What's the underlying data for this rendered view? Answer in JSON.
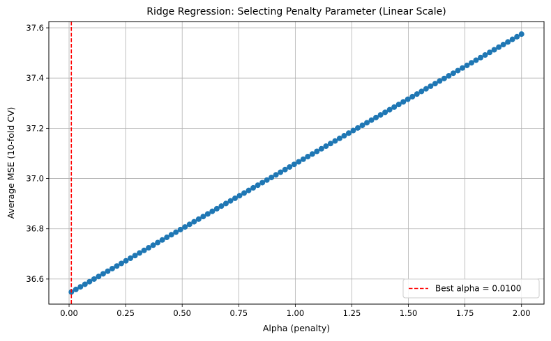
{
  "chart_data": {
    "type": "line",
    "title": "Ridge Regression: Selecting Penalty Parameter (Linear Scale)",
    "xlabel": "Alpha (penalty)",
    "ylabel": "Average MSE (10-fold CV)",
    "xlim": [
      -0.0895,
      2.0995
    ],
    "ylim": [
      36.5,
      37.625
    ],
    "xticks": [
      0.0,
      0.25,
      0.5,
      0.75,
      1.0,
      1.25,
      1.5,
      1.75,
      2.0
    ],
    "xtick_labels": [
      "0.00",
      "0.25",
      "0.50",
      "0.75",
      "1.00",
      "1.25",
      "1.50",
      "1.75",
      "2.00"
    ],
    "yticks": [
      36.6,
      36.8,
      37.0,
      37.2,
      37.4,
      37.6
    ],
    "ytick_labels": [
      "36.6",
      "36.8",
      "37.0",
      "37.2",
      "37.4",
      "37.6"
    ],
    "grid": true,
    "series": [
      {
        "color": "#1f77b4",
        "marker": "circle",
        "x_start": 0.01,
        "x_end": 2.0,
        "n_points": 100,
        "y_start": 36.548,
        "y_end": 37.575
      }
    ],
    "vline": {
      "x": 0.01,
      "color": "#ff0000",
      "style": "dashed",
      "label": "Best alpha = 0.0100"
    },
    "legend": {
      "position": "lower-right",
      "entries": [
        "Best alpha = 0.0100"
      ]
    }
  }
}
